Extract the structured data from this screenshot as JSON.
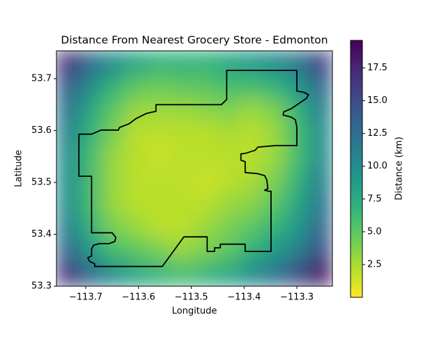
{
  "chart_data": {
    "type": "heatmap",
    "title": "Distance From Nearest Grocery Store - Edmonton",
    "xlabel": "Longitude",
    "ylabel": "Latitude",
    "colorbar_label": "Distance (km)",
    "colormap": "viridis_r",
    "xlim": [
      -113.7555,
      -113.2327
    ],
    "ylim": [
      53.3,
      53.7537
    ],
    "xticks": [
      {
        "value": -113.7,
        "label": "−113.7"
      },
      {
        "value": -113.6,
        "label": "−113.6"
      },
      {
        "value": -113.5,
        "label": "−113.5"
      },
      {
        "value": -113.4,
        "label": "−113.4"
      },
      {
        "value": -113.3,
        "label": "−113.3"
      }
    ],
    "yticks": [
      53.3,
      53.4,
      53.5,
      53.6,
      53.7
    ],
    "clim": [
      0,
      19.6
    ],
    "cticks": [
      2.5,
      {
        "value": 5,
        "label": "5.0"
      },
      7.5,
      {
        "value": 10,
        "label": "10.0"
      },
      12.5,
      {
        "value": 15,
        "label": "15.0"
      },
      17.5
    ],
    "x": [
      -113.734,
      -113.69,
      -113.647,
      -113.603,
      -113.56,
      -113.516,
      -113.473,
      -113.429,
      -113.386,
      -113.342,
      -113.298,
      -113.255
    ],
    "y": [
      53.731,
      53.685,
      53.64,
      53.595,
      53.549,
      53.504,
      53.459,
      53.413,
      53.368,
      53.323
    ],
    "z": [
      [
        17,
        13,
        10,
        8,
        7,
        7,
        7,
        8,
        9,
        10,
        12,
        16
      ],
      [
        14,
        10,
        7,
        5,
        4.5,
        5,
        5,
        6,
        6,
        7,
        9,
        13
      ],
      [
        12,
        8,
        5,
        3,
        3,
        3,
        3.5,
        4,
        3,
        4,
        7,
        11
      ],
      [
        11,
        7,
        4,
        2,
        2,
        2,
        2,
        2.5,
        2,
        3,
        6,
        10
      ],
      [
        10,
        6,
        3,
        2,
        1.5,
        2,
        2,
        2,
        2,
        3,
        6,
        10
      ],
      [
        10,
        6,
        3,
        2,
        2,
        2,
        1.5,
        2,
        2.5,
        4,
        7,
        11
      ],
      [
        10,
        6,
        3,
        2,
        2,
        2,
        2,
        3,
        3.5,
        5,
        8,
        12
      ],
      [
        11,
        7,
        4,
        3,
        2,
        2,
        3,
        4,
        5,
        7,
        9,
        13
      ],
      [
        13,
        9,
        6,
        5,
        4,
        3,
        4,
        5,
        7,
        9,
        11,
        15
      ],
      [
        17,
        13,
        10,
        8,
        7,
        6,
        7,
        8,
        10,
        12,
        15,
        19
      ]
    ],
    "boundary": {
      "color": "#000000",
      "x": [
        -113.713,
        -113.689,
        -113.671,
        -113.638,
        -113.636,
        -113.618,
        -113.605,
        -113.585,
        -113.567,
        -113.567,
        -113.443,
        -113.433,
        -113.433,
        -113.3,
        -113.3,
        -113.287,
        -113.278,
        -113.282,
        -113.295,
        -113.311,
        -113.325,
        -113.326,
        -113.311,
        -113.303,
        -113.3,
        -113.3,
        -113.341,
        -113.374,
        -113.379,
        -113.398,
        -113.406,
        -113.406,
        -113.398,
        -113.398,
        -113.375,
        -113.361,
        -113.357,
        -113.355,
        -113.361,
        -113.353,
        -113.349,
        -113.349,
        -113.398,
        -113.398,
        -113.445,
        -113.445,
        -113.456,
        -113.456,
        -113.47,
        -113.47,
        -113.514,
        -113.555,
        -113.683,
        -113.683,
        -113.693,
        -113.696,
        -113.689,
        -113.689,
        -113.685,
        -113.674,
        -113.656,
        -113.645,
        -113.643,
        -113.65,
        -113.689,
        -113.689,
        -113.713,
        -113.713
      ],
      "y": [
        53.593,
        53.593,
        53.601,
        53.601,
        53.606,
        53.613,
        53.623,
        53.633,
        53.637,
        53.65,
        53.65,
        53.66,
        53.716,
        53.716,
        53.676,
        53.674,
        53.669,
        53.662,
        53.653,
        53.642,
        53.636,
        53.63,
        53.626,
        53.621,
        53.607,
        53.571,
        53.571,
        53.568,
        53.562,
        53.556,
        53.555,
        53.543,
        53.54,
        53.519,
        53.517,
        53.513,
        53.505,
        53.488,
        53.485,
        53.483,
        53.483,
        53.367,
        53.367,
        53.381,
        53.381,
        53.374,
        53.374,
        53.367,
        53.367,
        53.395,
        53.395,
        53.338,
        53.338,
        53.343,
        53.348,
        53.355,
        53.358,
        53.372,
        53.379,
        53.382,
        53.382,
        53.386,
        53.394,
        53.403,
        53.403,
        53.512,
        53.512,
        53.593
      ]
    }
  }
}
